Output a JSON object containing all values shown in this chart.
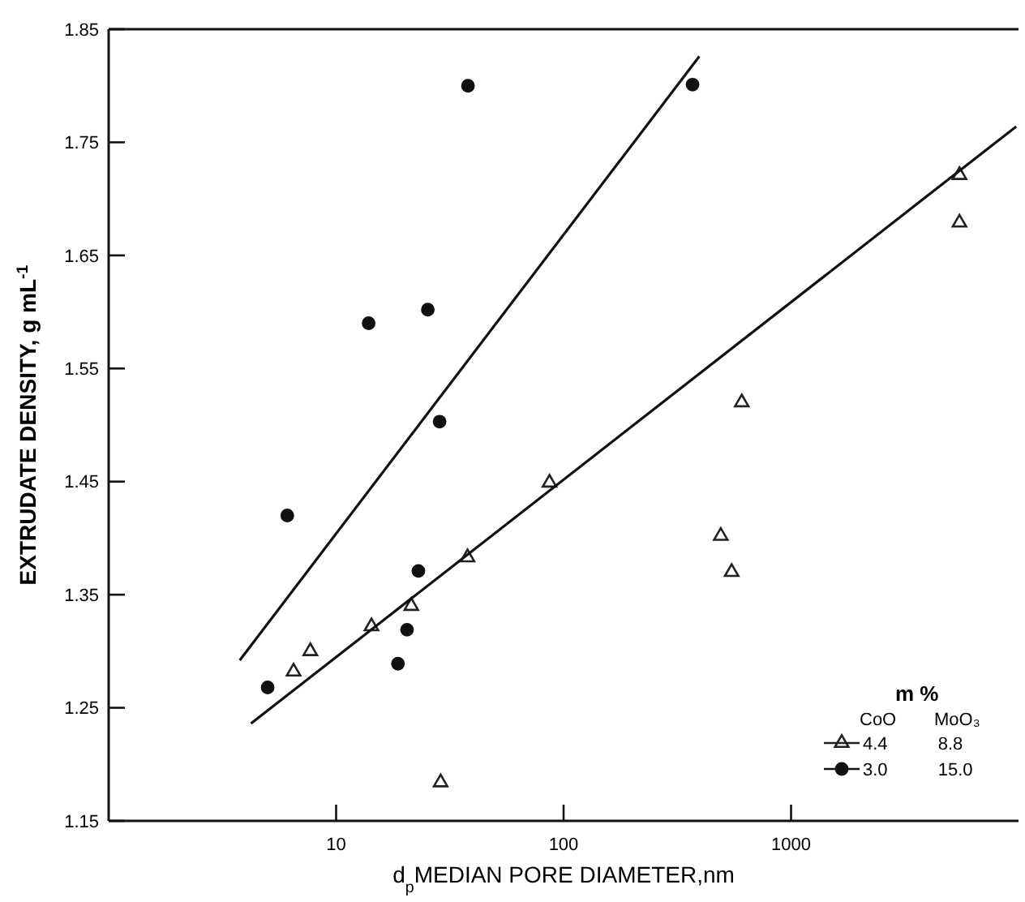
{
  "chart_data": {
    "type": "scatter",
    "xlabel": "d$_{p}$MEDIAN PORE DIAMETER,nm",
    "ylabel": "EXTRUDATE DENSITY, g mL$^{-1}$",
    "log": "x",
    "xlim": [
      1,
      10000
    ],
    "xticks": [
      10,
      100,
      1000
    ],
    "ylim": [
      1.15,
      1.85
    ],
    "yticks": [
      {
        "value": 1.15,
        "label": "1.15"
      },
      1.25,
      1.35,
      1.45,
      1.55,
      1.65,
      1.75,
      1.85
    ],
    "grid": false,
    "legend": "bottom right",
    "legend_title": "m %",
    "annotations": [
      "CoO",
      "MoO₃"
    ],
    "series": [
      {
        "name": "4.4 8.8",
        "marker": "triangle",
        "color": "#222222",
        "x": [
          6.5,
          7.7,
          14.3,
          21.4,
          28.8,
          37.8,
          86.7,
          491,
          548,
          607,
          5500,
          5500
        ],
        "values": [
          1.282,
          1.3,
          1.322,
          1.34,
          1.184,
          1.383,
          1.449,
          1.402,
          1.37,
          1.52,
          1.721,
          1.679
        ]
      },
      {
        "name": "3.0 15.0",
        "marker": "circle",
        "color": "#111111",
        "x": [
          5.0,
          6.1,
          13.9,
          18.7,
          20.5,
          23,
          25.3,
          28.5,
          38,
          369
        ],
        "values": [
          1.268,
          1.42,
          1.59,
          1.289,
          1.319,
          1.371,
          1.602,
          1.503,
          1.8,
          1.801
        ]
      },
      {
        "type": "line",
        "marker": "none",
        "line_style": "solid",
        "color": "#111111",
        "x": [
          3.77,
          395
        ],
        "values": [
          1.292,
          1.826
        ]
      },
      {
        "type": "line",
        "marker": "none",
        "line_style": "solid",
        "color": "#111111",
        "x": [
          4.22,
          9770
        ],
        "values": [
          1.236,
          1.764
        ]
      }
    ]
  }
}
